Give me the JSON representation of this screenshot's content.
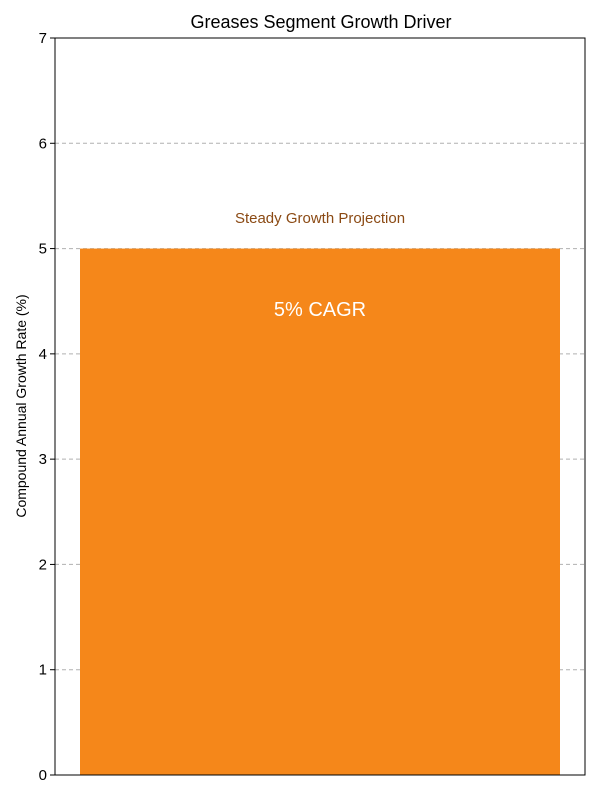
{
  "chart_data": {
    "type": "bar",
    "title": "Greases Segment Growth Driver",
    "xlabel": "",
    "ylabel": "Compound Annual Growth Rate (%)",
    "categories": [
      ""
    ],
    "values": [
      5
    ],
    "ylim": [
      0,
      7
    ],
    "yticks": [
      "0",
      "1",
      "2",
      "3",
      "4",
      "5",
      "6",
      "7"
    ],
    "grid": "horizontal dashed",
    "bar_label": "5% CAGR",
    "annotation": "Steady Growth Projection",
    "colors": {
      "bar": "#F5871A",
      "bar_label": "#ffffff",
      "annotation": "#8B4A14",
      "grid": "#b0b0b0",
      "axis": "#000000"
    }
  }
}
